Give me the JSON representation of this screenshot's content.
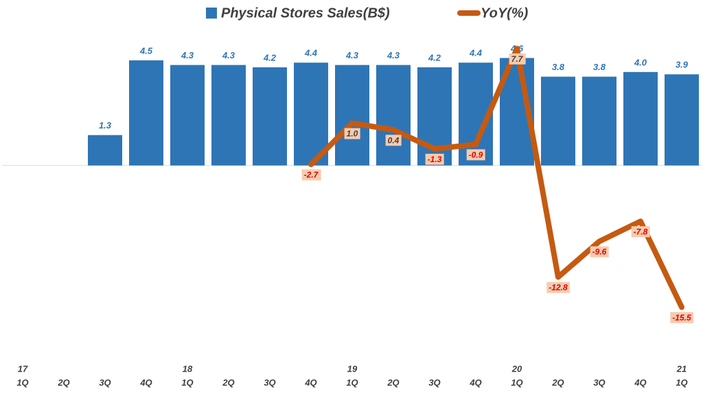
{
  "chart_data": {
    "type": "bar-line",
    "categories": [
      "1Q",
      "2Q",
      "3Q",
      "4Q",
      "1Q",
      "2Q",
      "3Q",
      "4Q",
      "1Q",
      "2Q",
      "3Q",
      "4Q",
      "1Q",
      "2Q",
      "3Q",
      "4Q",
      "1Q"
    ],
    "years": [
      "17",
      null,
      null,
      null,
      "18",
      null,
      null,
      null,
      "19",
      null,
      null,
      null,
      "20",
      null,
      null,
      null,
      "21"
    ],
    "ylim": [
      -8.5,
      6.2
    ],
    "y2lim": [
      -20.6,
      10.2
    ],
    "legend": "top",
    "series": [
      {
        "name": "Physical Stores Sales(B$)",
        "type": "bar",
        "color": "#2E75B6",
        "values": [
          null,
          null,
          1.3,
          4.5,
          4.3,
          4.3,
          4.2,
          4.4,
          4.3,
          4.3,
          4.2,
          4.4,
          4.6,
          3.8,
          3.8,
          4.0,
          3.9
        ],
        "value_labels": [
          null,
          null,
          "1.3",
          "4.5",
          "4.3",
          "4.3",
          "4.2",
          "4.4",
          "4.3",
          "4.3",
          "4.2",
          "4.4",
          "4.6",
          "3.8",
          "3.8",
          "4.0",
          "3.9"
        ]
      },
      {
        "name": "YoY(%)",
        "type": "line",
        "axis": "y2",
        "color": "#C55A11",
        "values": [
          null,
          null,
          null,
          null,
          null,
          null,
          null,
          -2.7,
          1.0,
          0.4,
          -1.3,
          -0.9,
          7.7,
          -12.8,
          -9.6,
          -7.8,
          -15.5
        ],
        "value_labels": [
          null,
          null,
          null,
          null,
          null,
          null,
          null,
          "-2.7",
          "1.0",
          "0.4",
          "-1.3",
          "-0.9",
          "7.7",
          "-12.8",
          "-9.6",
          "-7.8",
          "-15.5"
        ]
      }
    ]
  }
}
